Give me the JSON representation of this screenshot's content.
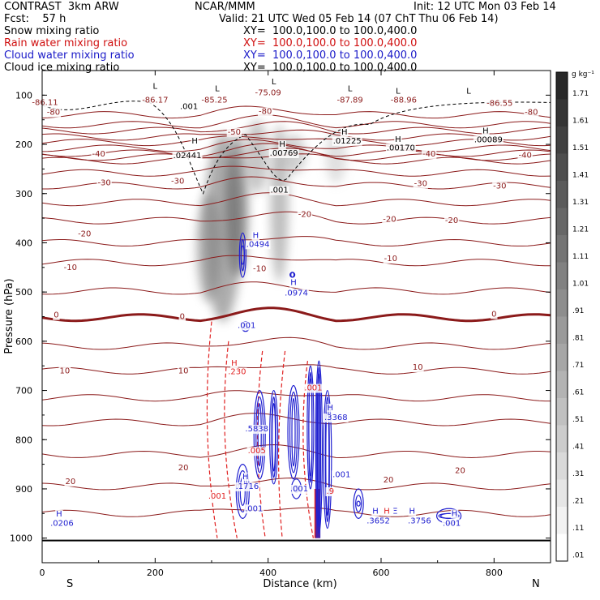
{
  "header": {
    "left": [
      {
        "text": "CONTRAST  3km ARW",
        "color": "#000000"
      },
      {
        "text": "Fcst:    57 h",
        "color": "#000000"
      },
      {
        "text": "Snow mixing ratio",
        "color": "#000000"
      },
      {
        "text": "Rain water mixing ratio",
        "color": "#d01010"
      },
      {
        "text": "Cloud water mixing ratio",
        "color": "#1a1ac8"
      },
      {
        "text": "Cloud ice mixing ratio",
        "color": "#000000"
      }
    ],
    "center": "NCAR/MMM",
    "init": "Init: 12 UTC Mon 03 Feb 14",
    "valid": "Valid: 21 UTC Wed 05 Feb 14 (07 ChT Thu 06 Feb 14)",
    "xy": [
      {
        "text": "XY=  100.0,100.0 to 100.0,400.0",
        "color": "#000000"
      },
      {
        "text": "XY=  100.0,100.0 to 100.0,400.0",
        "color": "#d01010"
      },
      {
        "text": "XY=  100.0,100.0 to 100.0,400.0",
        "color": "#1a1ac8"
      },
      {
        "text": "XY=  100.0,100.0 to 100.0,400.0",
        "color": "#000000"
      }
    ]
  },
  "chart_data": {
    "type": "contour-cross-section",
    "xlabel": "Distance (km)",
    "ylabel": "Pressure (hPa)",
    "xlim": [
      0,
      900
    ],
    "ylim": [
      1050,
      50
    ],
    "x_ticks": [
      0,
      200,
      400,
      600,
      800
    ],
    "y_ticks": [
      100,
      200,
      300,
      400,
      500,
      600,
      700,
      800,
      900,
      1000
    ],
    "x_end_labels": {
      "left": "S",
      "right": "N"
    },
    "colorbar": {
      "unit": "g kg⁻¹",
      "labels": [
        "1.71",
        "1.61",
        "1.51",
        "1.41",
        "1.31",
        "1.21",
        "1.11",
        "1.01",
        ".91",
        ".81",
        ".71",
        ".61",
        ".51",
        ".41",
        ".31",
        ".21",
        ".11",
        ".01"
      ]
    },
    "colors": {
      "temperature": "#8b1a1a",
      "rain": "#e02020",
      "cloud_water": "#2020d0",
      "ice": "#000000",
      "snow": "#505050"
    },
    "temperature_contour_levels": [
      -80,
      -70,
      -60,
      -50,
      -40,
      -30,
      -20,
      -10,
      0,
      10,
      20
    ],
    "temperature_labels": [
      {
        "x": 5,
        "p": 120,
        "text": "-86.11",
        "c": "t"
      },
      {
        "x": 20,
        "p": 140,
        "text": "-80",
        "c": "t"
      },
      {
        "x": 200,
        "p": 115,
        "text": "-86.17",
        "c": "t"
      },
      {
        "x": 305,
        "p": 115,
        "text": "-85.25",
        "c": "t"
      },
      {
        "x": 400,
        "p": 100,
        "text": "-75.09",
        "c": "t"
      },
      {
        "x": 545,
        "p": 115,
        "text": "-87.89",
        "c": "t"
      },
      {
        "x": 640,
        "p": 115,
        "text": "-88.96",
        "c": "t"
      },
      {
        "x": 810,
        "p": 122,
        "text": "-86.55",
        "c": "t"
      },
      {
        "x": 866,
        "p": 140,
        "text": "-80",
        "c": "t"
      },
      {
        "x": 395,
        "p": 138,
        "text": "-80",
        "c": "t"
      },
      {
        "x": 100,
        "p": 225,
        "text": "-40",
        "c": "t"
      },
      {
        "x": 340,
        "p": 180,
        "text": "-50",
        "c": "t"
      },
      {
        "x": 685,
        "p": 225,
        "text": "-40",
        "c": "t"
      },
      {
        "x": 855,
        "p": 227,
        "text": "-40",
        "c": "t"
      },
      {
        "x": 110,
        "p": 283,
        "text": "-30",
        "c": "t"
      },
      {
        "x": 240,
        "p": 280,
        "text": "-30",
        "c": "t"
      },
      {
        "x": 670,
        "p": 285,
        "text": "-30",
        "c": "t"
      },
      {
        "x": 810,
        "p": 290,
        "text": "-30",
        "c": "t"
      },
      {
        "x": 465,
        "p": 347,
        "text": "-20",
        "c": "t"
      },
      {
        "x": 615,
        "p": 357,
        "text": "-20",
        "c": "t"
      },
      {
        "x": 725,
        "p": 360,
        "text": "-20",
        "c": "t"
      },
      {
        "x": 75,
        "p": 387,
        "text": "-20",
        "c": "t"
      },
      {
        "x": 50,
        "p": 455,
        "text": "-10",
        "c": "t"
      },
      {
        "x": 385,
        "p": 458,
        "text": "-10",
        "c": "t"
      },
      {
        "x": 617,
        "p": 437,
        "text": "-10",
        "c": "t"
      },
      {
        "x": 25,
        "p": 552,
        "text": "0",
        "c": "t"
      },
      {
        "x": 248,
        "p": 555,
        "text": "0",
        "c": "t"
      },
      {
        "x": 800,
        "p": 550,
        "text": "0",
        "c": "t"
      },
      {
        "x": 40,
        "p": 665,
        "text": "10",
        "c": "t"
      },
      {
        "x": 250,
        "p": 665,
        "text": "10",
        "c": "t"
      },
      {
        "x": 665,
        "p": 658,
        "text": "10",
        "c": "t"
      },
      {
        "x": 250,
        "p": 862,
        "text": "20",
        "c": "t"
      },
      {
        "x": 50,
        "p": 890,
        "text": "20",
        "c": "t"
      },
      {
        "x": 613,
        "p": 887,
        "text": "20",
        "c": "t"
      },
      {
        "x": 740,
        "p": 868,
        "text": "20",
        "c": "t"
      },
      {
        "x": 200,
        "p": 87,
        "text": "L",
        "c": "t"
      },
      {
        "x": 310,
        "p": 92,
        "text": "L",
        "c": "t"
      },
      {
        "x": 410,
        "p": 78,
        "text": "L",
        "c": "t"
      },
      {
        "x": 545,
        "p": 92,
        "text": "L",
        "c": "t"
      },
      {
        "x": 630,
        "p": 97,
        "text": "L",
        "c": "t"
      },
      {
        "x": 755,
        "p": 97,
        "text": "L",
        "c": "t"
      },
      {
        "x": 270,
        "p": 198,
        "text": "H",
        "c": "t"
      },
      {
        "x": 425,
        "p": 205,
        "text": "H",
        "c": "t"
      },
      {
        "x": 535,
        "p": 180,
        "text": "H",
        "c": "t"
      },
      {
        "x": 630,
        "p": 195,
        "text": "H",
        "c": "t"
      },
      {
        "x": 785,
        "p": 178,
        "text": "H",
        "c": "t"
      },
      {
        "x": 257,
        "p": 228,
        "text": ".02441",
        "c": "t"
      },
      {
        "x": 428,
        "p": 223,
        "text": ".00769",
        "c": "t"
      },
      {
        "x": 540,
        "p": 198,
        "text": ".01225",
        "c": "t"
      },
      {
        "x": 635,
        "p": 212,
        "text": ".00170",
        "c": "t"
      },
      {
        "x": 790,
        "p": 196,
        "text": ".00089",
        "c": "t"
      },
      {
        "x": 260,
        "p": 128,
        "text": ".001",
        "c": "t"
      },
      {
        "x": 420,
        "p": 298,
        "text": ".001",
        "c": "t"
      },
      {
        "x": 382,
        "p": 408,
        "text": ".0494",
        "c": "w"
      },
      {
        "x": 378,
        "p": 390,
        "text": "H",
        "c": "w"
      },
      {
        "x": 450,
        "p": 507,
        "text": ".0974",
        "c": "w"
      },
      {
        "x": 445,
        "p": 486,
        "text": "H",
        "c": "w"
      },
      {
        "x": 362,
        "p": 573,
        "text": ".001",
        "c": "w"
      },
      {
        "x": 340,
        "p": 650,
        "text": "H",
        "c": "r"
      },
      {
        "x": 345,
        "p": 667,
        "text": ".230",
        "c": "r"
      },
      {
        "x": 380,
        "p": 783,
        "text": ".5838",
        "c": "w"
      },
      {
        "x": 510,
        "p": 740,
        "text": "H",
        "c": "w"
      },
      {
        "x": 520,
        "p": 760,
        "text": ".3368",
        "c": "w"
      },
      {
        "x": 480,
        "p": 700,
        "text": ".001",
        "c": "r"
      },
      {
        "x": 380,
        "p": 828,
        "text": ".005",
        "c": "r"
      },
      {
        "x": 360,
        "p": 880,
        "text": "H",
        "c": "w"
      },
      {
        "x": 363,
        "p": 900,
        "text": ".1716",
        "c": "w"
      },
      {
        "x": 375,
        "p": 945,
        "text": ".001",
        "c": "w"
      },
      {
        "x": 455,
        "p": 905,
        "text": ".001",
        "c": "w"
      },
      {
        "x": 310,
        "p": 920,
        "text": ".001",
        "c": "r"
      },
      {
        "x": 510,
        "p": 910,
        "text": ".9",
        "c": "r"
      },
      {
        "x": 530,
        "p": 876,
        "text": ".001",
        "c": "w"
      },
      {
        "x": 590,
        "p": 950,
        "text": "H",
        "c": "w"
      },
      {
        "x": 595,
        "p": 970,
        "text": ".3652",
        "c": "w"
      },
      {
        "x": 610,
        "p": 950,
        "text": "H",
        "c": "r"
      },
      {
        "x": 625,
        "p": 950,
        "text": "Ξ",
        "c": "w"
      },
      {
        "x": 655,
        "p": 950,
        "text": "H",
        "c": "w"
      },
      {
        "x": 668,
        "p": 970,
        "text": ".3756",
        "c": "w"
      },
      {
        "x": 725,
        "p": 975,
        "text": ".001",
        "c": "w"
      },
      {
        "x": 730,
        "p": 955,
        "text": "H",
        "c": "w"
      },
      {
        "x": 30,
        "p": 956,
        "text": "H",
        "c": "w"
      },
      {
        "x": 35,
        "p": 975,
        "text": ".0206",
        "c": "w"
      }
    ]
  }
}
